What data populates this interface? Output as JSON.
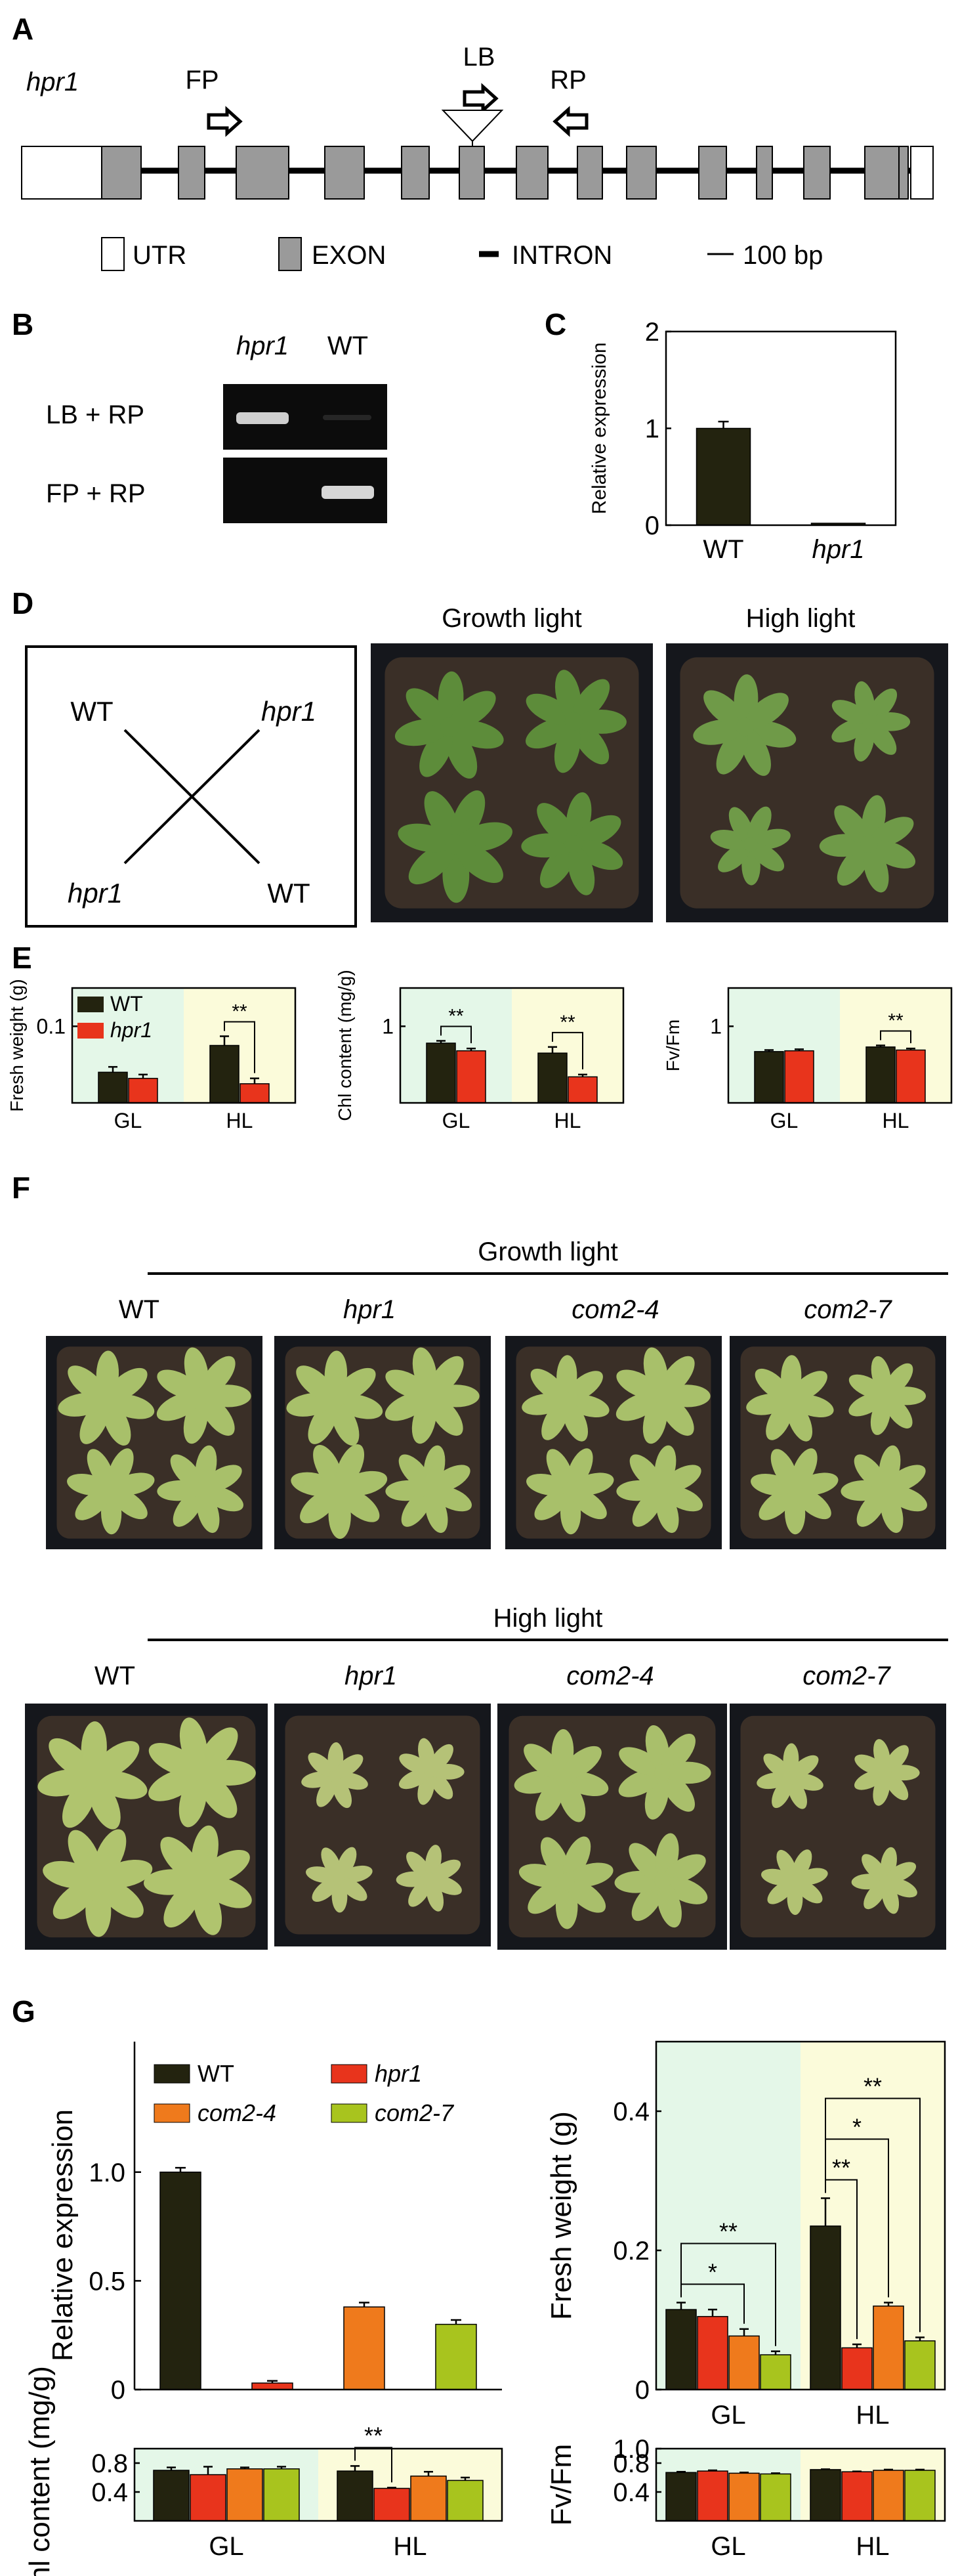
{
  "figure": {
    "panel_labels": {
      "A": "A",
      "B": "B",
      "C": "C",
      "D": "D",
      "E": "E",
      "F": "F",
      "G": "G"
    }
  },
  "panelA": {
    "gene": "hpr1",
    "primers": {
      "fp": "FP",
      "lb": "LB",
      "rp": "RP"
    },
    "legend": {
      "utr": "UTR",
      "exon": "EXON",
      "intron": "INTRON",
      "scale": "100 bp"
    }
  },
  "panelB": {
    "lanes": [
      "hpr1",
      "WT"
    ],
    "rows": [
      "LB + RP",
      "FP + RP"
    ]
  },
  "panelD": {
    "layout": {
      "top_left": "WT",
      "top_right": "hpr1",
      "bottom_left": "hpr1",
      "bottom_right": "WT"
    },
    "photo_titles": [
      "Growth light",
      "High light"
    ]
  },
  "panelF": {
    "header_growth": "Growth light",
    "header_high": "High light",
    "genotypes": [
      "WT",
      "hpr1",
      "com2-4",
      "com2-7"
    ]
  },
  "colors": {
    "wt": "#23230f",
    "hpr1": "#e8341c",
    "com24": "#ef7a1c",
    "com27": "#a8c41e",
    "gl_bg": "#e4f7e8",
    "hl_bg": "#fbfbda"
  },
  "chart_data": [
    {
      "id": "C",
      "type": "bar",
      "ylabel": "Relative expression",
      "categories": [
        "WT",
        "hpr1"
      ],
      "values": [
        1.0,
        0.02
      ],
      "errors": [
        0.07,
        0.0
      ],
      "ylim": [
        0,
        2
      ],
      "yticks": [
        "0",
        "1",
        "2"
      ]
    },
    {
      "id": "E1",
      "type": "bar",
      "ylabel": "Fresh weight (g)",
      "groups": [
        "GL",
        "HL"
      ],
      "legend": [
        "WT",
        "hpr1"
      ],
      "series": [
        {
          "name": "WT",
          "values": [
            0.04,
            0.075
          ],
          "errors": [
            0.007,
            0.012
          ]
        },
        {
          "name": "hpr1",
          "values": [
            0.032,
            0.025
          ],
          "errors": [
            0.005,
            0.007
          ]
        }
      ],
      "ylim": [
        0,
        0.15
      ],
      "yticks": [
        "0.1"
      ],
      "significance": [
        {
          "group": "HL",
          "label": "**"
        }
      ]
    },
    {
      "id": "E2",
      "type": "bar",
      "ylabel": "Chl content (mg/g)",
      "groups": [
        "GL",
        "HL"
      ],
      "series": [
        {
          "name": "WT",
          "values": [
            0.78,
            0.65
          ],
          "errors": [
            0.03,
            0.08
          ]
        },
        {
          "name": "hpr1",
          "values": [
            0.68,
            0.34
          ],
          "errors": [
            0.03,
            0.03
          ]
        }
      ],
      "ylim": [
        0,
        1.5
      ],
      "yticks": [
        "1"
      ],
      "significance": [
        {
          "group": "GL",
          "label": "**"
        },
        {
          "group": "HL",
          "label": "**"
        }
      ]
    },
    {
      "id": "E3",
      "type": "bar",
      "ylabel": "Fv/Fm",
      "groups": [
        "GL",
        "HL"
      ],
      "series": [
        {
          "name": "WT",
          "values": [
            0.67,
            0.73
          ],
          "errors": [
            0.02,
            0.02
          ]
        },
        {
          "name": "hpr1",
          "values": [
            0.68,
            0.69
          ],
          "errors": [
            0.02,
            0.02
          ]
        }
      ],
      "ylim": [
        0,
        1.5
      ],
      "yticks": [
        "1"
      ],
      "significance": [
        {
          "group": "HL",
          "label": "**"
        }
      ]
    },
    {
      "id": "G1",
      "type": "bar",
      "ylabel": "Relative expression",
      "categories": [
        "WT",
        "hpr1",
        "com2-4",
        "com2-7"
      ],
      "values": [
        1.0,
        0.03,
        0.38,
        0.3
      ],
      "errors": [
        0.02,
        0.01,
        0.02,
        0.02
      ],
      "legend": [
        "WT",
        "hpr1",
        "com2-4",
        "com2-7"
      ],
      "ylim": [
        0,
        1.6
      ],
      "yticks": [
        "0",
        "0.5",
        "1.0"
      ]
    },
    {
      "id": "G2",
      "type": "bar",
      "ylabel": "Fresh weight (g)",
      "groups": [
        "GL",
        "HL"
      ],
      "series": [
        {
          "name": "WT",
          "values": [
            0.115,
            0.235
          ],
          "errors": [
            0.01,
            0.04
          ]
        },
        {
          "name": "hpr1",
          "values": [
            0.105,
            0.06
          ],
          "errors": [
            0.01,
            0.005
          ]
        },
        {
          "name": "com2-4",
          "values": [
            0.077,
            0.12
          ],
          "errors": [
            0.01,
            0.005
          ]
        },
        {
          "name": "com2-7",
          "values": [
            0.05,
            0.07
          ],
          "errors": [
            0.005,
            0.005
          ]
        }
      ],
      "ylim": [
        0,
        0.5
      ],
      "yticks": [
        "0",
        "0.2",
        "0.4"
      ],
      "significance": [
        {
          "group": "GL",
          "from": 0,
          "to": 2,
          "label": "*"
        },
        {
          "group": "GL",
          "from": 0,
          "to": 3,
          "label": "**"
        },
        {
          "group": "HL",
          "from": 0,
          "to": 1,
          "label": "**"
        },
        {
          "group": "HL",
          "from": 0,
          "to": 2,
          "label": "*"
        },
        {
          "group": "HL",
          "from": 0,
          "to": 3,
          "label": "**"
        }
      ]
    },
    {
      "id": "G3",
      "type": "bar",
      "ylabel": "Chl content (mg/g)",
      "groups": [
        "GL",
        "HL"
      ],
      "series": [
        {
          "name": "WT",
          "values": [
            0.7,
            0.69
          ],
          "errors": [
            0.04,
            0.07
          ]
        },
        {
          "name": "hpr1",
          "values": [
            0.64,
            0.45
          ],
          "errors": [
            0.11,
            0.01
          ]
        },
        {
          "name": "com2-4",
          "values": [
            0.72,
            0.62
          ],
          "errors": [
            0.02,
            0.06
          ]
        },
        {
          "name": "com2-7",
          "values": [
            0.72,
            0.56
          ],
          "errors": [
            0.03,
            0.04
          ]
        }
      ],
      "ylim": [
        0,
        1.0
      ],
      "yticks": [
        "0.4",
        "0.8"
      ],
      "significance": [
        {
          "group": "HL",
          "from": 0,
          "to": 1,
          "label": "**"
        }
      ]
    },
    {
      "id": "G4",
      "type": "bar",
      "ylabel": "Fv/Fm",
      "groups": [
        "GL",
        "HL"
      ],
      "series": [
        {
          "name": "WT",
          "values": [
            0.67,
            0.71
          ],
          "errors": [
            0.01,
            0.005
          ]
        },
        {
          "name": "hpr1",
          "values": [
            0.69,
            0.68
          ],
          "errors": [
            0.01,
            0.005
          ]
        },
        {
          "name": "com2-4",
          "values": [
            0.66,
            0.7
          ],
          "errors": [
            0.01,
            0.01
          ]
        },
        {
          "name": "com2-7",
          "values": [
            0.65,
            0.7
          ],
          "errors": [
            0.01,
            0.01
          ]
        }
      ],
      "ylim": [
        0,
        1.0
      ],
      "yticks": [
        "0.4",
        "0.8",
        "1.0"
      ]
    }
  ]
}
